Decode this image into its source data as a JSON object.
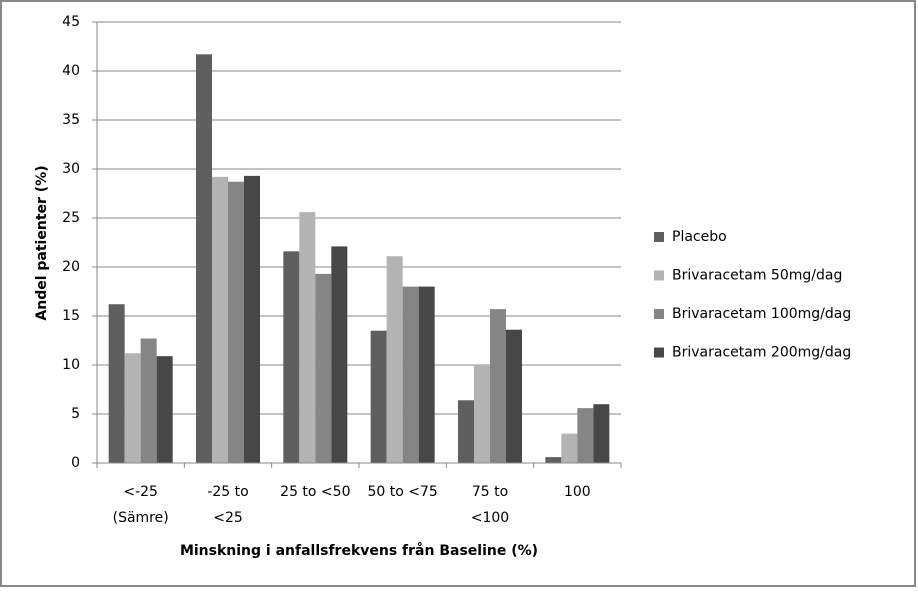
{
  "chart_data": {
    "type": "bar",
    "categories": [
      [
        "<-25",
        "(Sämre)"
      ],
      [
        "-25 to",
        "<25"
      ],
      [
        "25 to <50"
      ],
      [
        "50 to <75"
      ],
      [
        "75 to",
        "<100"
      ],
      [
        "100"
      ]
    ],
    "series": [
      {
        "name": "Placebo",
        "color": "#5f5f5f",
        "values": [
          16.2,
          41.7,
          21.6,
          13.5,
          6.4,
          0.6
        ]
      },
      {
        "name": "Brivaracetam 50mg/dag",
        "color": "#b3b3b3",
        "values": [
          11.2,
          29.2,
          25.6,
          21.1,
          10.0,
          3.0
        ]
      },
      {
        "name": "Brivaracetam 100mg/dag",
        "color": "#858585",
        "values": [
          12.7,
          28.7,
          19.3,
          18.0,
          15.7,
          5.6
        ]
      },
      {
        "name": "Brivaracetam 200mg/dag",
        "color": "#474747",
        "values": [
          10.9,
          29.3,
          22.1,
          18.0,
          13.6,
          6.0
        ]
      }
    ],
    "xlabel": "Minskning  i anfallsfrekvens  från Baseline (%)",
    "ylabel": "Andel patienter (%)",
    "ylim": [
      0,
      45
    ],
    "yticks": [
      0,
      5,
      10,
      15,
      20,
      25,
      30,
      35,
      40,
      45
    ],
    "grid": true,
    "legend": "right"
  }
}
